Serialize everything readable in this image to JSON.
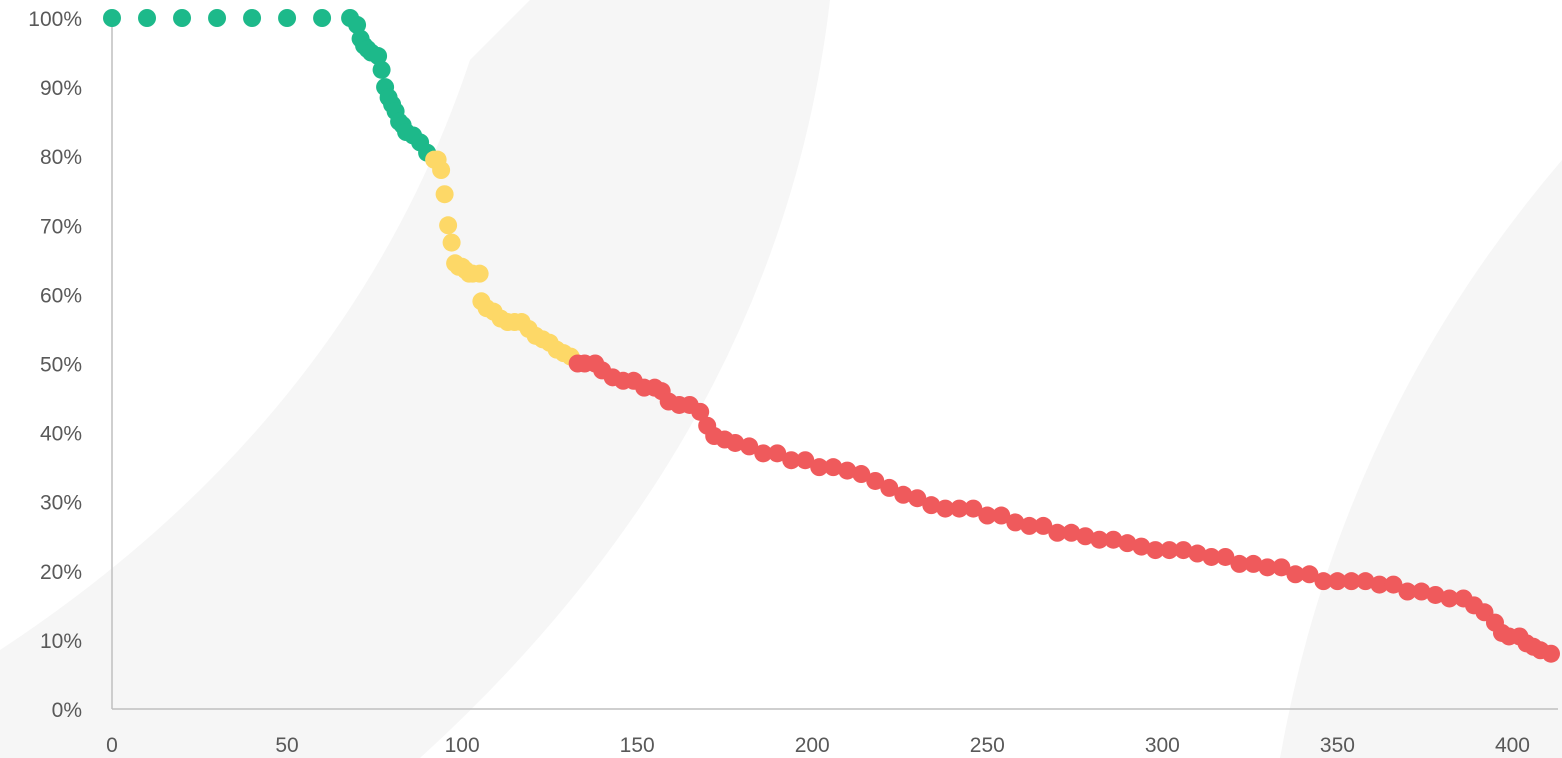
{
  "chart_data": {
    "type": "scatter",
    "title": "",
    "xlabel": "",
    "ylabel": "",
    "xlim": [
      0,
      413
    ],
    "ylim": [
      0,
      100
    ],
    "x_ticks": [
      0,
      50,
      100,
      150,
      200,
      250,
      300,
      350,
      400
    ],
    "x_tick_labels": [
      "0",
      "50",
      "100",
      "150",
      "200",
      "250",
      "300",
      "350",
      "400"
    ],
    "y_ticks": [
      0,
      10,
      20,
      30,
      40,
      50,
      60,
      70,
      80,
      90,
      100
    ],
    "y_tick_labels": [
      "0%",
      "10%",
      "20%",
      "30%",
      "40%",
      "50%",
      "60%",
      "70%",
      "80%",
      "90%",
      "100%"
    ],
    "grid": false,
    "legend": "none",
    "series": [
      {
        "color": "#1db98a",
        "points": [
          [
            0,
            100
          ],
          [
            10,
            100
          ],
          [
            20,
            100
          ],
          [
            30,
            100
          ],
          [
            40,
            100
          ],
          [
            50,
            100
          ],
          [
            60,
            100
          ],
          [
            68,
            100
          ],
          [
            70,
            99
          ],
          [
            71,
            97
          ],
          [
            72,
            96
          ],
          [
            73,
            95.5
          ],
          [
            74,
            95
          ],
          [
            76,
            94.5
          ],
          [
            77,
            92.5
          ],
          [
            78,
            90
          ],
          [
            79,
            88.5
          ],
          [
            80,
            87.5
          ],
          [
            81,
            86.5
          ],
          [
            82,
            85
          ],
          [
            83,
            84.5
          ],
          [
            84,
            83.5
          ],
          [
            86,
            83
          ],
          [
            88,
            82
          ],
          [
            90,
            80.5
          ]
        ]
      },
      {
        "color": "#fdd867",
        "points": [
          [
            92,
            79.5
          ],
          [
            93,
            79.5
          ],
          [
            94,
            78
          ],
          [
            95,
            74.5
          ],
          [
            96,
            70
          ],
          [
            97,
            67.5
          ],
          [
            98,
            64.5
          ],
          [
            99,
            64
          ],
          [
            100,
            64
          ],
          [
            101,
            63.5
          ],
          [
            102,
            63
          ],
          [
            103,
            63
          ],
          [
            105,
            63
          ],
          [
            105.5,
            59
          ],
          [
            107,
            58
          ],
          [
            109,
            57.5
          ],
          [
            111,
            56.5
          ],
          [
            113,
            56
          ],
          [
            115,
            56
          ],
          [
            117,
            56
          ],
          [
            119,
            55
          ],
          [
            121,
            54
          ],
          [
            123,
            53.5
          ],
          [
            125,
            53
          ],
          [
            127,
            52
          ],
          [
            129,
            51.5
          ],
          [
            131,
            51
          ]
        ]
      },
      {
        "color": "#ef5a5c",
        "points": [
          [
            133,
            50
          ],
          [
            135,
            50
          ],
          [
            138,
            50
          ],
          [
            140,
            49
          ],
          [
            143,
            48
          ],
          [
            146,
            47.5
          ],
          [
            149,
            47.5
          ],
          [
            152,
            46.5
          ],
          [
            155,
            46.5
          ],
          [
            157,
            46
          ],
          [
            159,
            44.5
          ],
          [
            162,
            44
          ],
          [
            165,
            44
          ],
          [
            168,
            43
          ],
          [
            170,
            41
          ],
          [
            172,
            39.5
          ],
          [
            175,
            39
          ],
          [
            178,
            38.5
          ],
          [
            182,
            38
          ],
          [
            186,
            37
          ],
          [
            190,
            37
          ],
          [
            194,
            36
          ],
          [
            198,
            36
          ],
          [
            202,
            35
          ],
          [
            206,
            35
          ],
          [
            210,
            34.5
          ],
          [
            214,
            34
          ],
          [
            218,
            33
          ],
          [
            222,
            32
          ],
          [
            226,
            31
          ],
          [
            230,
            30.5
          ],
          [
            234,
            29.5
          ],
          [
            238,
            29
          ],
          [
            242,
            29
          ],
          [
            246,
            29
          ],
          [
            250,
            28
          ],
          [
            254,
            28
          ],
          [
            258,
            27
          ],
          [
            262,
            26.5
          ],
          [
            266,
            26.5
          ],
          [
            270,
            25.5
          ],
          [
            274,
            25.5
          ],
          [
            278,
            25
          ],
          [
            282,
            24.5
          ],
          [
            286,
            24.5
          ],
          [
            290,
            24
          ],
          [
            294,
            23.5
          ],
          [
            298,
            23
          ],
          [
            302,
            23
          ],
          [
            306,
            23
          ],
          [
            310,
            22.5
          ],
          [
            314,
            22
          ],
          [
            318,
            22
          ],
          [
            322,
            21
          ],
          [
            326,
            21
          ],
          [
            330,
            20.5
          ],
          [
            334,
            20.5
          ],
          [
            338,
            19.5
          ],
          [
            342,
            19.5
          ],
          [
            346,
            18.5
          ],
          [
            350,
            18.5
          ],
          [
            354,
            18.5
          ],
          [
            358,
            18.5
          ],
          [
            362,
            18
          ],
          [
            366,
            18
          ],
          [
            370,
            17
          ],
          [
            374,
            17
          ],
          [
            378,
            16.5
          ],
          [
            382,
            16
          ],
          [
            386,
            16
          ],
          [
            389,
            15
          ],
          [
            392,
            14
          ],
          [
            395,
            12.5
          ],
          [
            397,
            11
          ],
          [
            399,
            10.5
          ],
          [
            402,
            10.5
          ],
          [
            404,
            9.5
          ],
          [
            406,
            9
          ],
          [
            408,
            8.5
          ],
          [
            411,
            8
          ]
        ]
      }
    ]
  }
}
